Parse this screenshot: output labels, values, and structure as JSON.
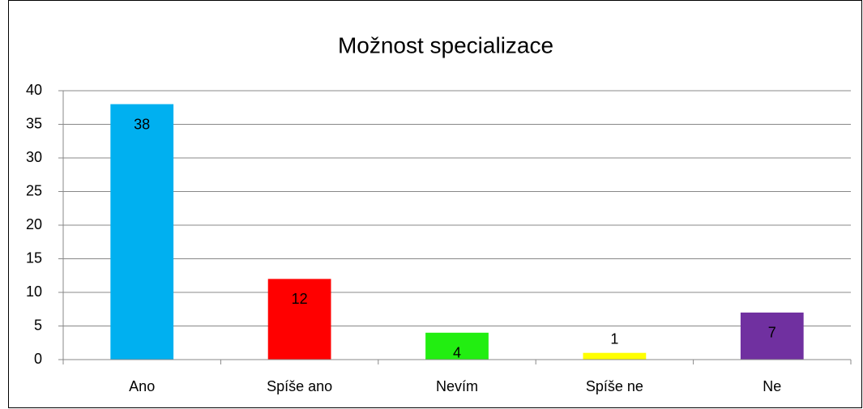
{
  "chart_data": {
    "type": "bar",
    "title": "Možnost specializace",
    "categories": [
      "Ano",
      "Spíše ano",
      "Nevím",
      "Spíše ne",
      "Ne"
    ],
    "values": [
      38,
      12,
      4,
      1,
      7
    ],
    "colors": [
      "#00b0f0",
      "#ff0000",
      "#22ee11",
      "#ffff00",
      "#7030a0"
    ],
    "ylim": [
      0,
      40
    ],
    "yticks": [
      0,
      5,
      10,
      15,
      20,
      25,
      30,
      35,
      40
    ],
    "grid": true,
    "data_labels": true
  }
}
